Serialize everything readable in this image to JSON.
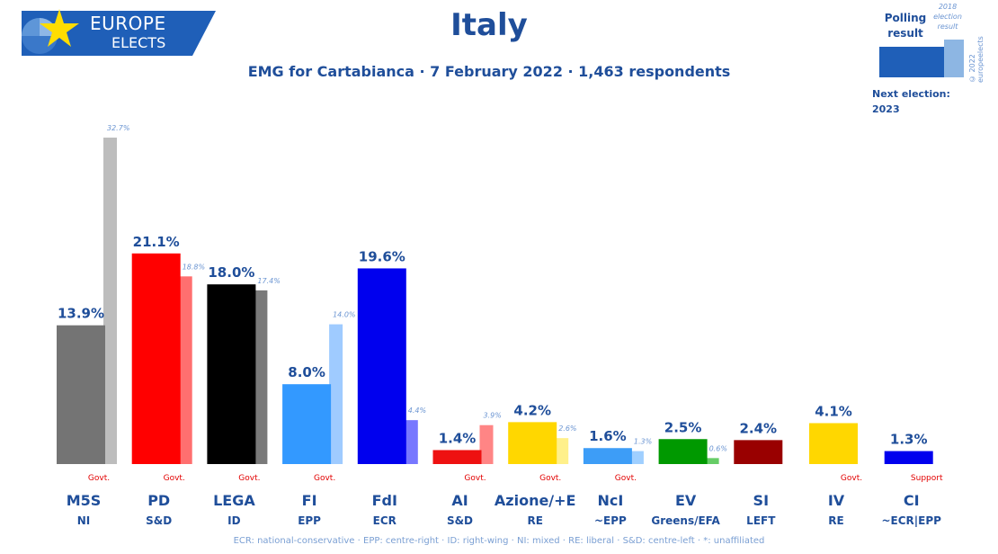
{
  "logo": {
    "line1": "EUROPE",
    "line2": "ELECTS"
  },
  "title": "Italy",
  "subtitle": "EMG for Cartabianca · 7 February 2022 · 1,463 respondents",
  "legend": {
    "polling": [
      "Polling",
      "result"
    ],
    "election": [
      "2018",
      "election",
      "result"
    ],
    "next_election": [
      "Next election:",
      "2023"
    ]
  },
  "copyright": "© 2022 europeelects",
  "footnote": "ECR: national-conservative · EPP: centre-right · ID: right-wing · NI: mixed · RE: liberal · S&D: centre-left · *: unaffiliated",
  "chart_data": {
    "type": "bar",
    "title": "Italy",
    "categories": [
      "M5S",
      "PD",
      "LEGA",
      "FI",
      "FdI",
      "AI",
      "Azione/+E",
      "NcI",
      "EV",
      "SI",
      "IV",
      "CI"
    ],
    "groups": [
      "NI",
      "S&D",
      "ID",
      "EPP",
      "ECR",
      "S&D",
      "RE",
      "~EPP",
      "Greens/EFA",
      "LEFT",
      "RE",
      "~ECR|EPP"
    ],
    "statuses": [
      "Govt.",
      "Govt.",
      "Govt.",
      "Govt.",
      "",
      "Govt.",
      "Govt.",
      "Govt.",
      "",
      "",
      "Govt.",
      "Support"
    ],
    "series": [
      {
        "name": "Polling result",
        "values": [
          13.9,
          21.1,
          18.0,
          8.0,
          19.6,
          1.4,
          4.2,
          1.6,
          2.5,
          2.4,
          4.1,
          1.3
        ],
        "labels": [
          "13.9%",
          "21.1%",
          "18.0%",
          "8.0%",
          "19.6%",
          "1.4%",
          "4.2%",
          "1.6%",
          "2.5%",
          "2.4%",
          "4.1%",
          "1.3%"
        ]
      },
      {
        "name": "2018 election result",
        "values": [
          32.7,
          18.8,
          17.4,
          14.0,
          4.4,
          3.9,
          2.6,
          1.3,
          0.6,
          null,
          null,
          null
        ],
        "labels": [
          "32.7%",
          "18.8%",
          "17.4%",
          "14.0%",
          "4.4%",
          "3.9%",
          "2.6%",
          "1.3%",
          "0.6%",
          "",
          "",
          ""
        ]
      }
    ],
    "colors": [
      "#747474",
      "#ff0000",
      "#000000",
      "#3399ff",
      "#0000ee",
      "#ee1111",
      "#ffd700",
      "#3d9df7",
      "#009900",
      "#990000",
      "#ffd700",
      "#0000ee"
    ],
    "light_colors": [
      "#bdbdbd",
      "#ff6f6f",
      "#7a7a7a",
      "#9fcbff",
      "#7777ff",
      "#ff8585",
      "#fff08a",
      "#9fcfff",
      "#66cc66",
      "",
      "",
      "#3d9df7"
    ],
    "ylim": [
      0,
      35
    ]
  }
}
